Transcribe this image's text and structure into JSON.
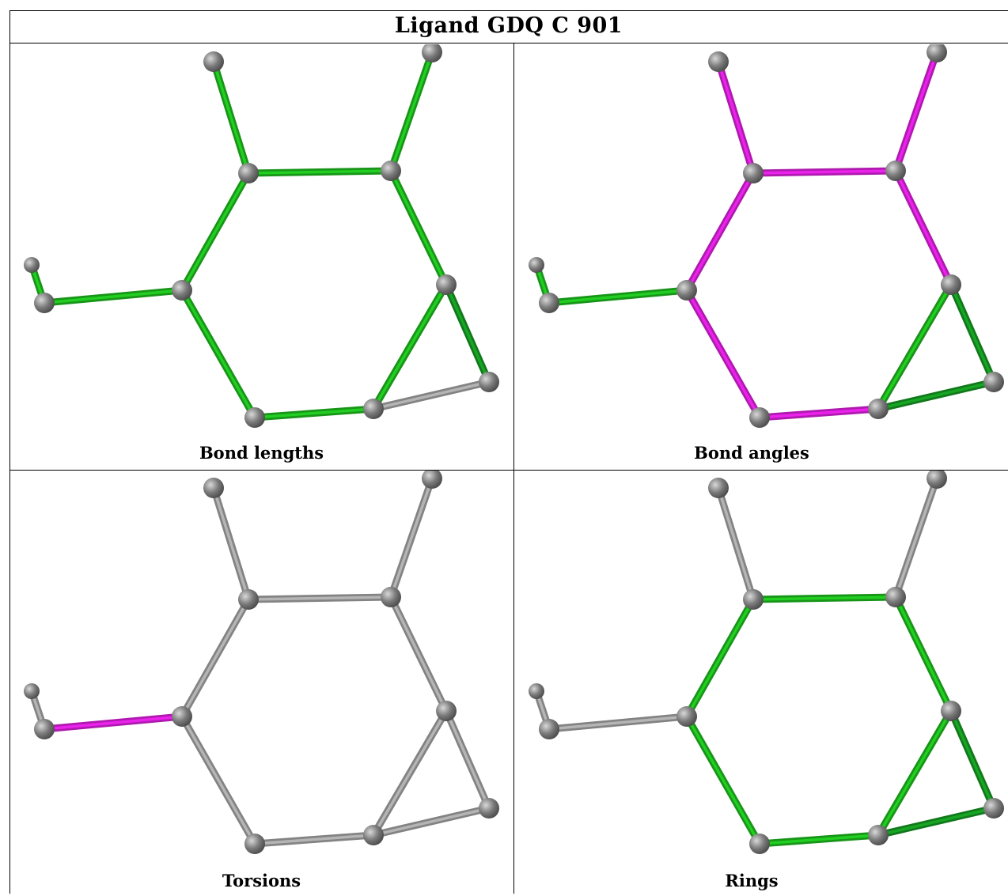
{
  "title": "Ligand GDQ C 901",
  "colors": {
    "green": "#1fbf1f",
    "dark_green": "#169a22",
    "magenta": "#e020e0",
    "gray": "#a8a8a8",
    "atom": "#7a7a7a"
  },
  "panels": [
    {
      "caption": "Bond lengths",
      "bonds": [
        "green",
        "green",
        "green",
        "green",
        "green",
        "green",
        "green",
        "green",
        "green",
        "green",
        "gray",
        "green",
        "dark_green"
      ]
    },
    {
      "caption": "Bond angles",
      "bonds": [
        "magenta",
        "magenta",
        "magenta",
        "magenta",
        "magenta",
        "magenta",
        "magenta",
        "magenta",
        "green",
        "green",
        "dark_green",
        "green",
        "dark_green"
      ]
    },
    {
      "caption": "Torsions",
      "bonds": [
        "gray",
        "gray",
        "gray",
        "gray",
        "gray",
        "gray",
        "gray",
        "gray",
        "magenta",
        "gray",
        "gray",
        "gray",
        "gray"
      ]
    },
    {
      "caption": "Rings",
      "bonds": [
        "green",
        "green",
        "green",
        "green",
        "green",
        "green",
        "gray",
        "gray",
        "gray",
        "gray",
        "dark_green",
        "green",
        "dark_green"
      ]
    }
  ]
}
